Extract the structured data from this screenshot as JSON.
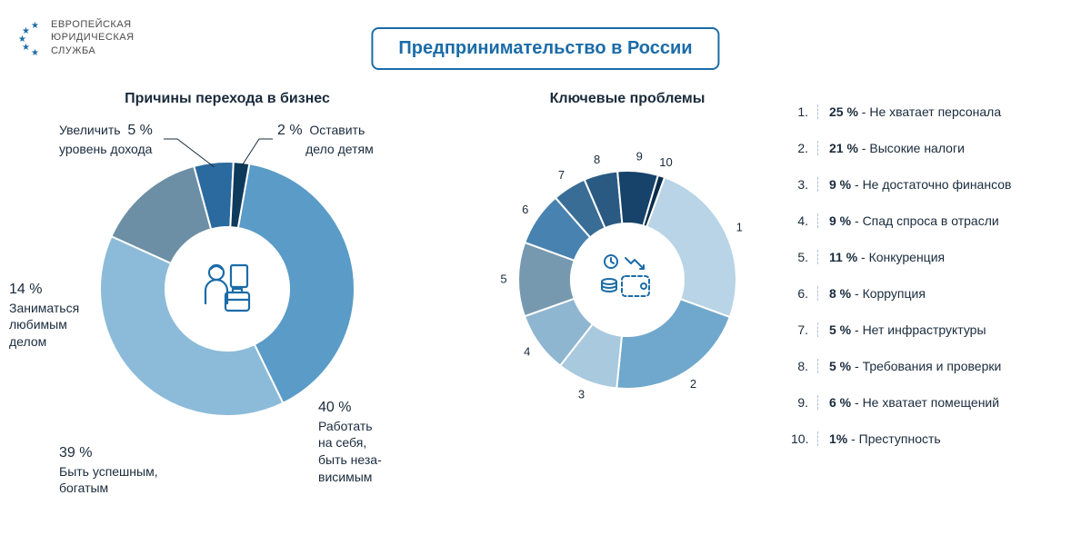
{
  "logo": {
    "line1": "ЕВРОПЕЙСКАЯ",
    "line2": "ЮРИДИЧЕСКАЯ",
    "line3": "СЛУЖБА",
    "star_color": "#1b6ca8"
  },
  "main_title": "Предпринимательство в России",
  "chart_left": {
    "title": "Причины перехода в бизнес",
    "type": "donut",
    "outer_radius": 140,
    "inner_radius": 68,
    "background": "#ffffff",
    "icon_color": "#1b6ca8",
    "slices": [
      {
        "value": 40,
        "color": "#5a9bc7",
        "label": "Работать на себя, быть неза- висимым",
        "pct": "40 %"
      },
      {
        "value": 39,
        "color": "#8cbbd9",
        "label": "Быть успешным, богатым",
        "pct": "39 %"
      },
      {
        "value": 14,
        "color": "#6d8fa5",
        "label": "Заниматься любимым делом",
        "pct": "14 %"
      },
      {
        "value": 5,
        "color": "#2a6a9e",
        "label": "Увеличить уровень дохода",
        "pct": "5 %"
      },
      {
        "value": 2,
        "color": "#0e3a5c",
        "label": "Оставить дело детям",
        "pct": "2 %"
      }
    ]
  },
  "chart_right": {
    "title": "Ключевые проблемы",
    "type": "donut",
    "outer_radius": 120,
    "inner_radius": 62,
    "background": "#ffffff",
    "icon_color": "#1b6ca8",
    "slices": [
      {
        "n": 1,
        "value": 25,
        "color": "#b8d4e6"
      },
      {
        "n": 2,
        "value": 21,
        "color": "#6fa8cc"
      },
      {
        "n": 3,
        "value": 9,
        "color": "#a8c9de"
      },
      {
        "n": 4,
        "value": 9,
        "color": "#8fb6d0"
      },
      {
        "n": 5,
        "value": 11,
        "color": "#7799b0"
      },
      {
        "n": 6,
        "value": 8,
        "color": "#4882b0"
      },
      {
        "n": 7,
        "value": 5,
        "color": "#3a6d96"
      },
      {
        "n": 8,
        "value": 5,
        "color": "#2a5a82"
      },
      {
        "n": 9,
        "value": 6,
        "color": "#174269"
      },
      {
        "n": 10,
        "value": 1,
        "color": "#0a2d4a"
      }
    ]
  },
  "legend": {
    "items": [
      {
        "n": "1.",
        "pct": "25 %",
        "text": "- Не хватает персонала"
      },
      {
        "n": "2.",
        "pct": "21 %",
        "text": "- Высокие налоги"
      },
      {
        "n": "3.",
        "pct": "9 %",
        "text": "- Не достаточно финансов"
      },
      {
        "n": "4.",
        "pct": "9 %",
        "text": "- Спад спроса в отрасли"
      },
      {
        "n": "5.",
        "pct": "11 %",
        "text": "- Конкуренция"
      },
      {
        "n": "6.",
        "pct": "8 %",
        "text": "- Коррупция"
      },
      {
        "n": "7.",
        "pct": "5 %",
        "text": "- Нет инфраструктуры"
      },
      {
        "n": "8.",
        "pct": "5 %",
        "text": "- Требования и проверки"
      },
      {
        "n": "9.",
        "pct": "6 %",
        "text": "- Не хватает помещений"
      },
      {
        "n": "10.",
        "pct": "1%",
        "text": "- Преступность"
      }
    ]
  }
}
